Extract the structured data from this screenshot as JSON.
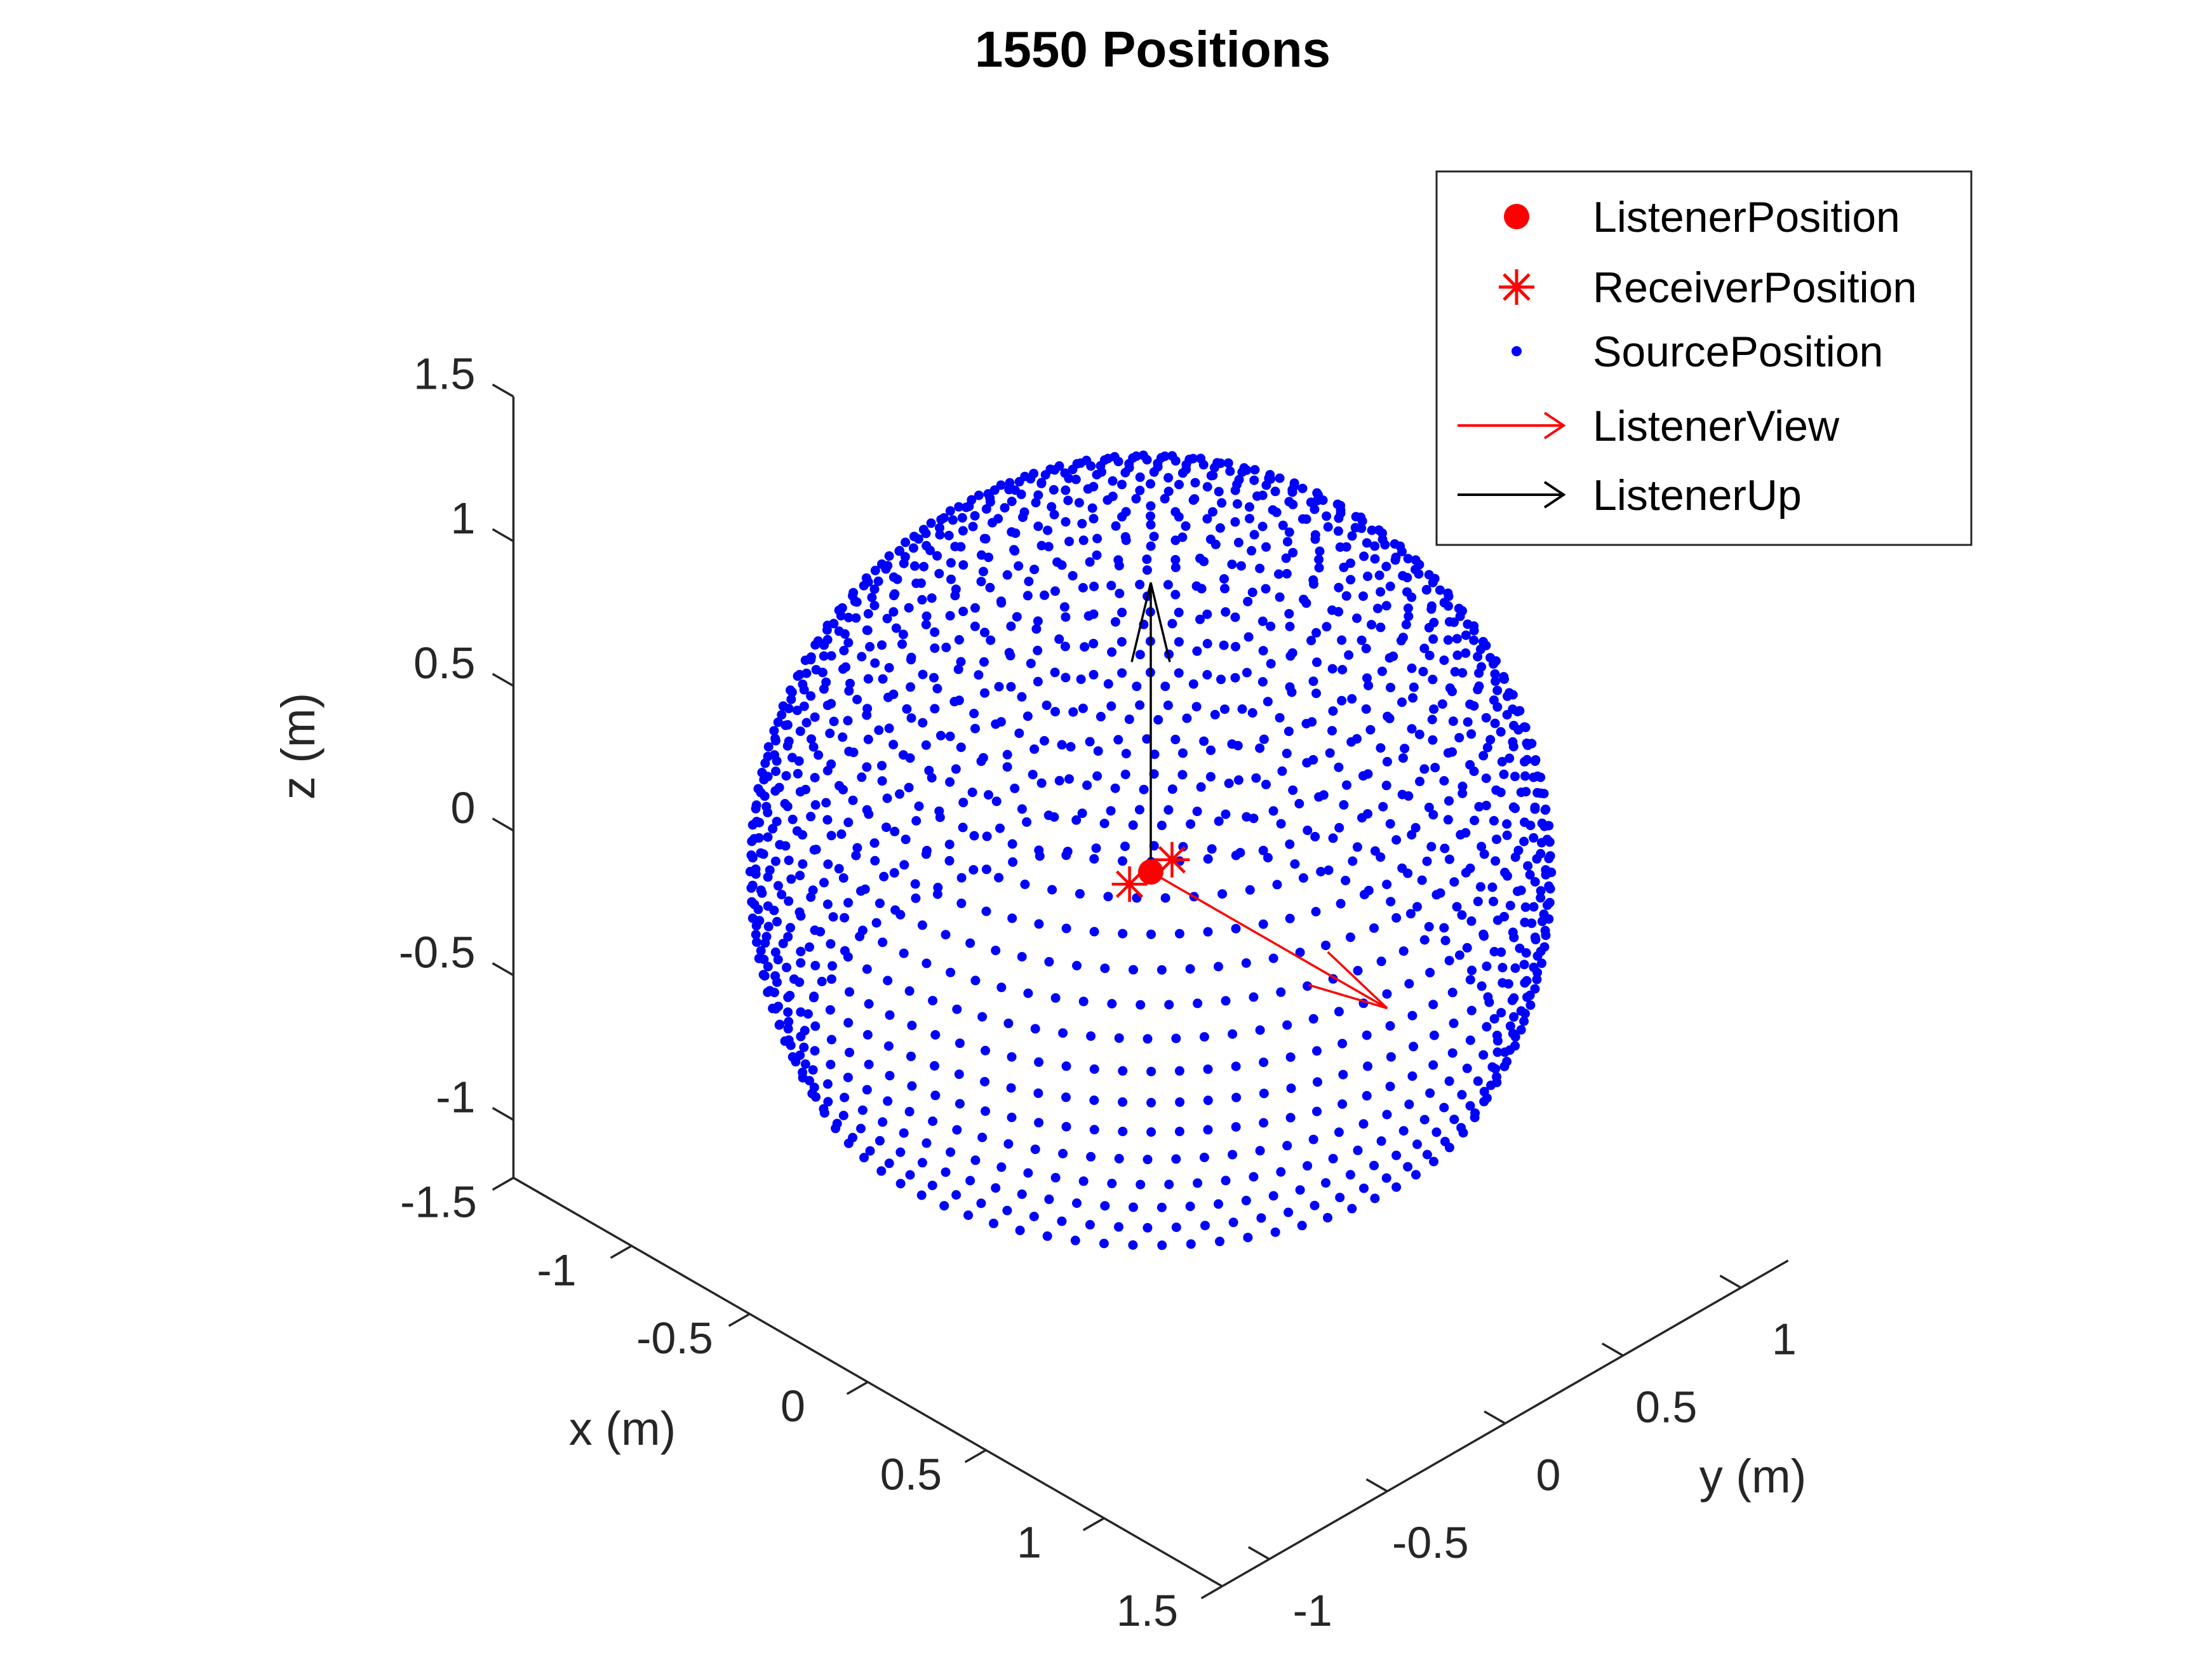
{
  "chart_data": {
    "type": "scatter",
    "projection": "3d",
    "title": "1550 Positions",
    "xlabel": "x (m)",
    "ylabel": "y (m)",
    "zlabel": "z (m)",
    "xlim": [
      -1.5,
      1.5
    ],
    "ylim": [
      -1.2,
      1.2
    ],
    "zlim": [
      -1.2,
      1.5
    ],
    "xticks": [
      "-1.5",
      "-1",
      "-0.5",
      "0",
      "0.5",
      "1",
      "1.5"
    ],
    "yticks": [
      "-1",
      "-0.5",
      "0",
      "0.5",
      "1"
    ],
    "zticks": [
      "-1",
      "-0.5",
      "0",
      "0.5",
      "1",
      "1.5"
    ],
    "grid": false,
    "legend_position": "top-right",
    "source_grid": {
      "radius": 1.2,
      "elevation_min_deg": -30,
      "elevation_max_deg": 90,
      "point_count": 1550
    },
    "series": [
      {
        "name": "ListenerPosition",
        "marker": "filled-circle",
        "color": "#ff0000",
        "points": [
          [
            0,
            0,
            0
          ]
        ]
      },
      {
        "name": "ReceiverPosition",
        "marker": "asterisk",
        "color": "#ff0000",
        "points": [
          [
            0,
            -0.09,
            0
          ],
          [
            0,
            0.09,
            0
          ]
        ]
      },
      {
        "name": "SourcePosition",
        "marker": "dot",
        "color": "#0000ff"
      },
      {
        "name": "ListenerView",
        "marker": "arrow",
        "color": "#ff0000",
        "from": [
          0,
          0,
          0
        ],
        "to": [
          1,
          0,
          0
        ]
      },
      {
        "name": "ListenerUp",
        "marker": "arrow",
        "color": "#000000",
        "from": [
          0,
          0,
          0
        ],
        "to": [
          0,
          0,
          1
        ]
      }
    ]
  },
  "colors": {
    "listener": "#ff0000",
    "receiver": "#ff0000",
    "source": "#0000ff",
    "view": "#ff0000",
    "up": "#000000",
    "axis": "#262626"
  }
}
